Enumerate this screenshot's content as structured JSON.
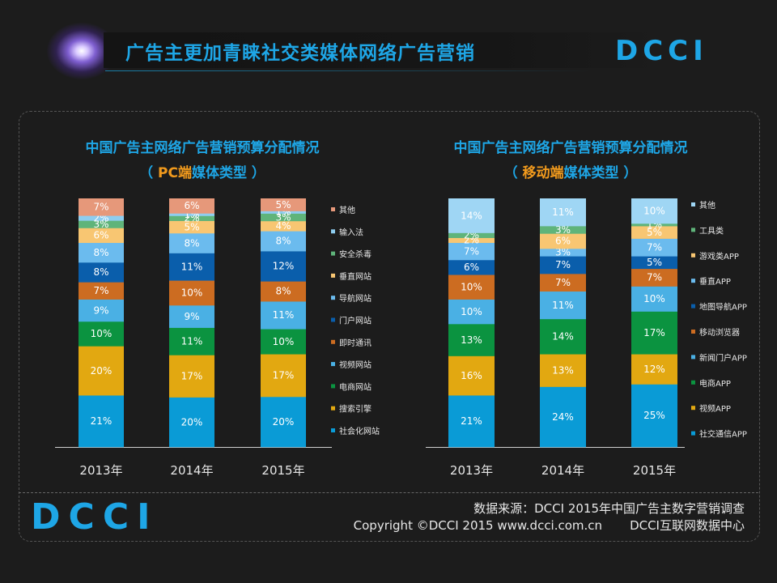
{
  "header": {
    "title": "广告主更加青睐社交类媒体网络广告营销",
    "logo_text": "DCCI"
  },
  "chart_data": [
    {
      "type": "bar",
      "stacked": true,
      "title": "中国广告主网络广告营销预算分配情况",
      "subtitle_open": "（ ",
      "subtitle_highlight": "PC端",
      "subtitle_rest": "媒体类型 ）",
      "categories": [
        "2013年",
        "2014年",
        "2015年"
      ],
      "value_suffix": "%",
      "series": [
        {
          "name": "社会化网站",
          "color": "#0a9bd6",
          "values": [
            21,
            20,
            20
          ]
        },
        {
          "name": "搜索引擎",
          "color": "#e2a811",
          "values": [
            20,
            17,
            17
          ]
        },
        {
          "name": "电商网站",
          "color": "#0b9340",
          "values": [
            10,
            11,
            10
          ]
        },
        {
          "name": "视频网站",
          "color": "#4ab0e4",
          "values": [
            9,
            9,
            11
          ]
        },
        {
          "name": "即时通讯",
          "color": "#cc6c21",
          "values": [
            7,
            10,
            8
          ]
        },
        {
          "name": "门户网站",
          "color": "#0a5eab",
          "values": [
            8,
            11,
            12
          ]
        },
        {
          "name": "导航网站",
          "color": "#6bbbee",
          "values": [
            8,
            8,
            8
          ]
        },
        {
          "name": "垂直网站",
          "color": "#f8c672",
          "values": [
            6,
            5,
            4
          ]
        },
        {
          "name": "安全杀毒",
          "color": "#5fb47a",
          "values": [
            3,
            2,
            3
          ]
        },
        {
          "name": "输入法",
          "color": "#8ecdf0",
          "values": [
            2,
            1,
            1
          ]
        },
        {
          "name": "其他",
          "color": "#e6987a",
          "values": [
            7,
            6,
            5
          ]
        }
      ]
    },
    {
      "type": "bar",
      "stacked": true,
      "title": "中国广告主网络广告营销预算分配情况",
      "subtitle_open": "（ ",
      "subtitle_highlight": "移动端",
      "subtitle_rest": "媒体类型 ）",
      "categories": [
        "2013年",
        "2014年",
        "2015年"
      ],
      "value_suffix": "%",
      "series": [
        {
          "name": "社交通信APP",
          "color": "#0a9bd6",
          "values": [
            21,
            24,
            25
          ]
        },
        {
          "name": "视频APP",
          "color": "#e2a811",
          "values": [
            16,
            13,
            12
          ]
        },
        {
          "name": "电商APP",
          "color": "#0b9340",
          "values": [
            13,
            14,
            17
          ]
        },
        {
          "name": "新闻门户APP",
          "color": "#4ab0e4",
          "values": [
            10,
            11,
            10
          ]
        },
        {
          "name": "移动浏览器",
          "color": "#cc6c21",
          "values": [
            10,
            7,
            7
          ]
        },
        {
          "name": "地图导航APP",
          "color": "#0a5eab",
          "values": [
            6,
            7,
            5
          ]
        },
        {
          "name": "垂直APP",
          "color": "#6bbbee",
          "values": [
            7,
            3,
            7
          ]
        },
        {
          "name": "游戏类APP",
          "color": "#f8c672",
          "values": [
            2,
            6,
            5
          ]
        },
        {
          "name": "工具类",
          "color": "#5fb47a",
          "values": [
            2,
            3,
            1
          ]
        },
        {
          "name": "其他",
          "color": "#9fd6f4",
          "values": [
            14,
            11,
            10
          ]
        }
      ]
    }
  ],
  "footer": {
    "logo_text": "DCCI",
    "source_line": "数据来源：DCCI  2015年中国广告主数字营销调查",
    "copyright": "Copyright ©DCCI 2015 www.dcci.com.cn",
    "org": "DCCI互联网数据中心"
  }
}
